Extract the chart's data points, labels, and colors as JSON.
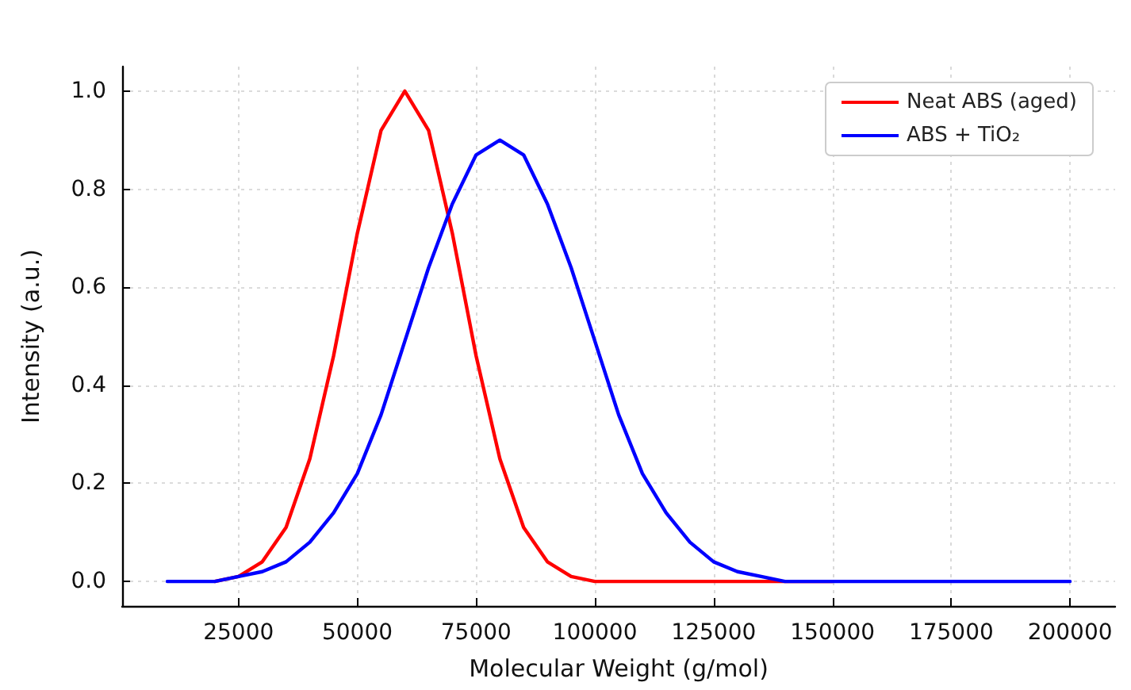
{
  "chart_data": {
    "type": "line",
    "xlabel": "Molecular Weight (g/mol)",
    "ylabel": "Intensity (a.u.)",
    "x": [
      10000,
      15000,
      20000,
      25000,
      30000,
      35000,
      40000,
      45000,
      50000,
      55000,
      60000,
      65000,
      70000,
      75000,
      80000,
      85000,
      90000,
      95000,
      100000,
      105000,
      110000,
      115000,
      120000,
      125000,
      130000,
      135000,
      140000,
      145000,
      150000,
      155000,
      160000,
      165000,
      170000,
      175000,
      180000,
      185000,
      190000,
      195000,
      200000
    ],
    "series": [
      {
        "name": "Neat ABS (aged)",
        "color": "#ff0000",
        "values": [
          null,
          null,
          0,
          0.01,
          0.04,
          0.11,
          0.25,
          0.46,
          0.71,
          0.92,
          1,
          0.92,
          0.71,
          0.46,
          0.25,
          0.11,
          0.04,
          0.01,
          0,
          0,
          0,
          0,
          0,
          0,
          0,
          0,
          0,
          0,
          0,
          null,
          null,
          null,
          null,
          null,
          null,
          null,
          null,
          null,
          null
        ]
      },
      {
        "name": "ABS + TiO₂",
        "color": "#0000ff",
        "values": [
          0,
          0,
          0,
          0.01,
          0.02,
          0.04,
          0.08,
          0.14,
          0.22,
          0.34,
          0.49,
          0.64,
          0.77,
          0.87,
          0.9,
          0.87,
          0.77,
          0.64,
          0.49,
          0.34,
          0.22,
          0.14,
          0.08,
          0.04,
          0.02,
          0.01,
          0,
          0,
          0,
          0,
          0,
          0,
          0,
          0,
          0,
          0,
          0,
          0,
          0
        ]
      }
    ],
    "xlim": [
      500,
      209500
    ],
    "xticks": [
      25000,
      50000,
      75000,
      100000,
      125000,
      150000,
      175000,
      200000
    ],
    "ylim": [
      -0.05,
      1.05
    ],
    "yticks": [
      {
        "value": 0,
        "label": "0.0"
      },
      {
        "value": 0.2,
        "label": "0.2"
      },
      {
        "value": 0.4,
        "label": "0.4"
      },
      {
        "value": 0.6,
        "label": "0.6"
      },
      {
        "value": 0.8,
        "label": "0.8"
      },
      {
        "value": 1,
        "label": "1.0"
      }
    ],
    "grid": true,
    "legend": "top right",
    "marker": "none",
    "line_style": "solid"
  }
}
